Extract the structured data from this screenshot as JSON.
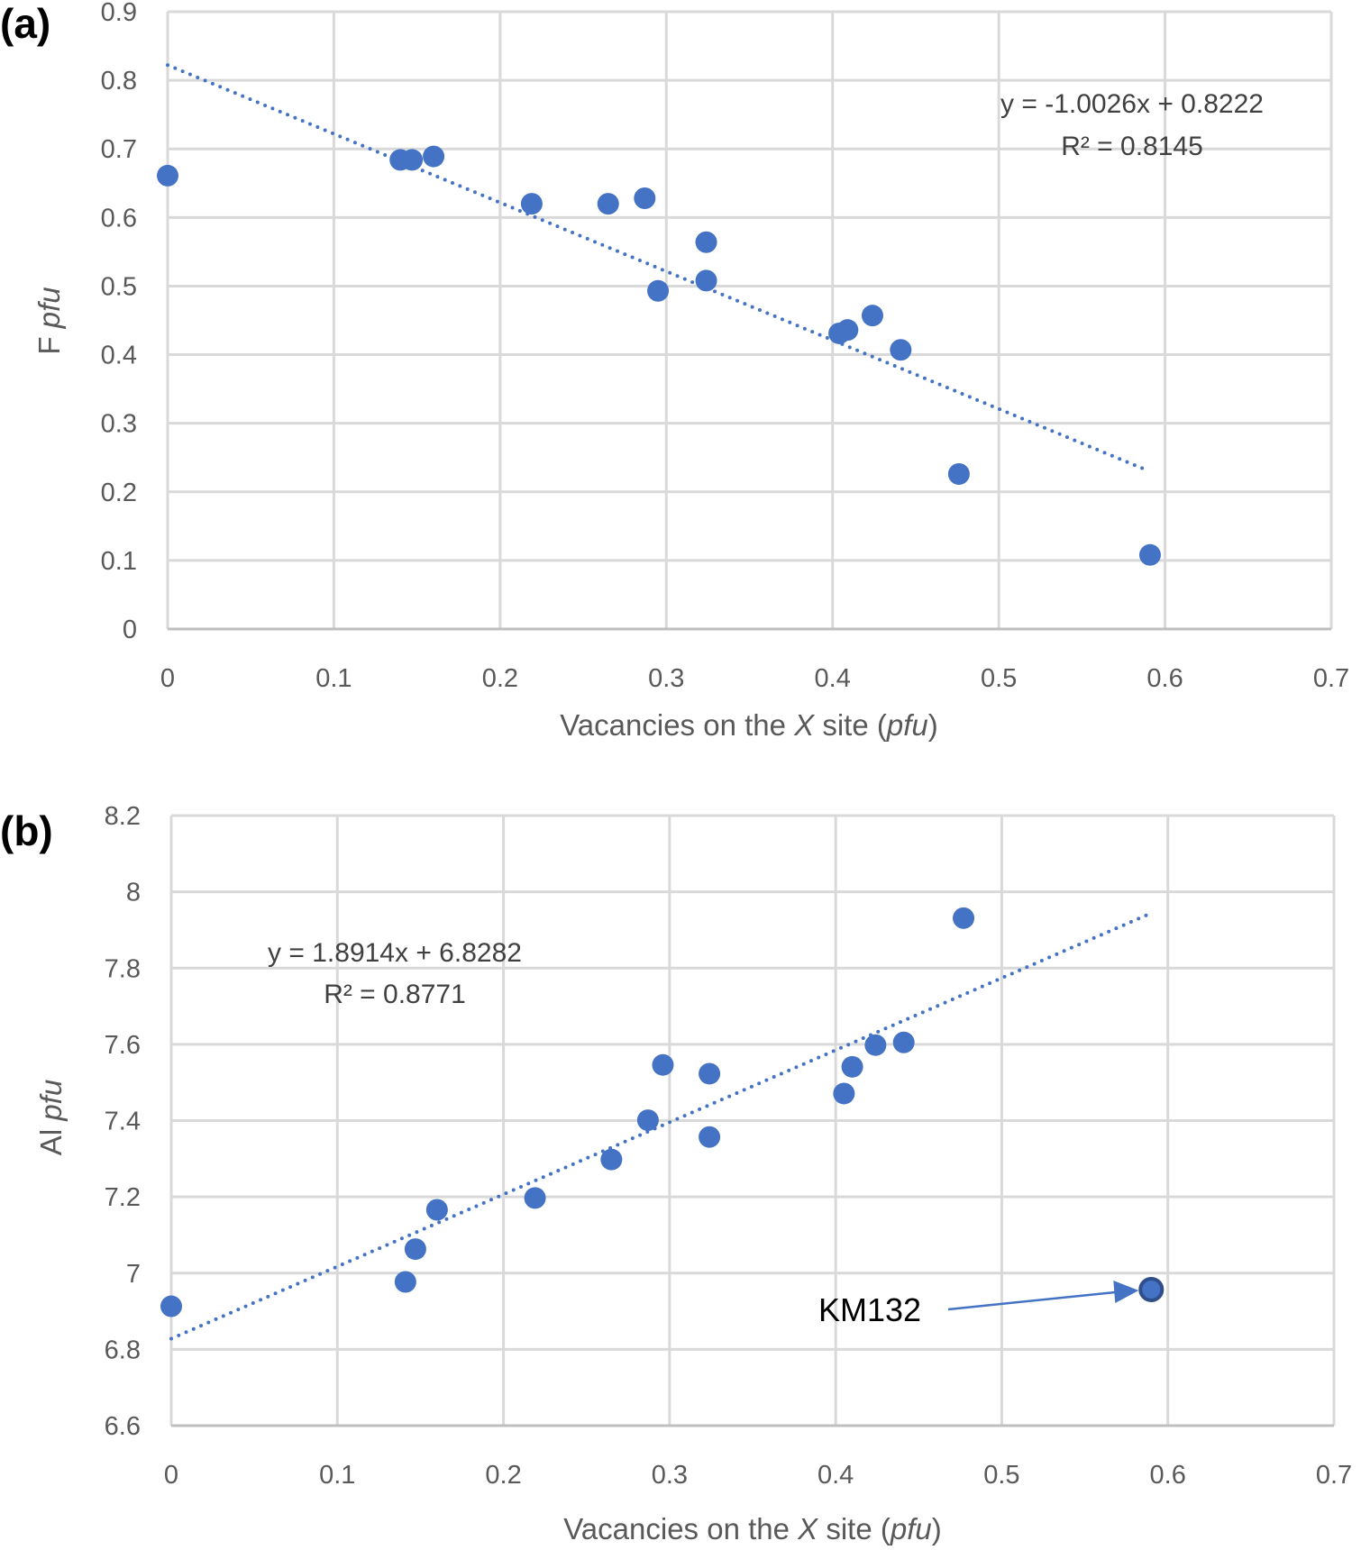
{
  "chart_data": [
    {
      "type": "scatter",
      "panel_label": "(a)",
      "xlabel_parts": [
        "Vacancies on the ",
        "X",
        " site (",
        "pfu",
        ")"
      ],
      "ylabel_parts": [
        "F ",
        "pfu"
      ],
      "xlim": [
        0,
        0.7
      ],
      "ylim": [
        0,
        0.9
      ],
      "xticks": [
        "0",
        "0.1",
        "0.2",
        "0.3",
        "0.4",
        "0.5",
        "0.6",
        "0.7"
      ],
      "yticks": [
        "0",
        "0.1",
        "0.2",
        "0.3",
        "0.4",
        "0.5",
        "0.6",
        "0.7",
        "0.8",
        "0.9"
      ],
      "grid": true,
      "color": "#4472C4",
      "points": [
        [
          0,
          0.661
        ],
        [
          0.14,
          0.684
        ],
        [
          0.147,
          0.684
        ],
        [
          0.16,
          0.689
        ],
        [
          0.219,
          0.62
        ],
        [
          0.265,
          0.62
        ],
        [
          0.287,
          0.628
        ],
        [
          0.324,
          0.564
        ],
        [
          0.295,
          0.493
        ],
        [
          0.324,
          0.508
        ],
        [
          0.404,
          0.431
        ],
        [
          0.409,
          0.436
        ],
        [
          0.424,
          0.457
        ],
        [
          0.441,
          0.407
        ],
        [
          0.476,
          0.226
        ],
        [
          0.591,
          0.108
        ]
      ],
      "trendline": {
        "slope": -1.0026,
        "intercept": 0.8222,
        "x_range": [
          0,
          0.59
        ],
        "style": "dotted"
      },
      "equation": "y = -1.0026x + 0.8222",
      "r2_label": "R² = 0.8145"
    },
    {
      "type": "scatter",
      "panel_label": "(b)",
      "xlabel_parts": [
        "Vacancies on the ",
        "X",
        " site (",
        "pfu",
        ")"
      ],
      "ylabel_parts": [
        "Al ",
        "pfu"
      ],
      "xlim": [
        0,
        0.7
      ],
      "ylim": [
        6.6,
        8.2
      ],
      "xticks": [
        "0",
        "0.1",
        "0.2",
        "0.3",
        "0.4",
        "0.5",
        "0.6",
        "0.7"
      ],
      "yticks": [
        "6.6",
        "6.8",
        "7",
        "7.2",
        "7.4",
        "7.6",
        "7.8",
        "8",
        "8.2"
      ],
      "grid": true,
      "color": "#4472C4",
      "points": [
        [
          0,
          6.913
        ],
        [
          0.141,
          6.977
        ],
        [
          0.147,
          7.063
        ],
        [
          0.16,
          7.166
        ],
        [
          0.219,
          7.197
        ],
        [
          0.265,
          7.298
        ],
        [
          0.287,
          7.401
        ],
        [
          0.296,
          7.546
        ],
        [
          0.324,
          7.523
        ],
        [
          0.324,
          7.357
        ],
        [
          0.405,
          7.471
        ],
        [
          0.41,
          7.541
        ],
        [
          0.424,
          7.598
        ],
        [
          0.441,
          7.605
        ],
        [
          0.477,
          7.931
        ],
        [
          0.59,
          6.957
        ]
      ],
      "highlighted_point": {
        "label": "KM132",
        "x": 0.59,
        "y": 6.957
      },
      "trendline": {
        "slope": 1.8914,
        "intercept": 6.8282,
        "x_range": [
          0,
          0.59
        ],
        "style": "dotted"
      },
      "equation": "y = 1.8914x + 6.8282",
      "r2_label": "R² = 0.8771"
    }
  ]
}
